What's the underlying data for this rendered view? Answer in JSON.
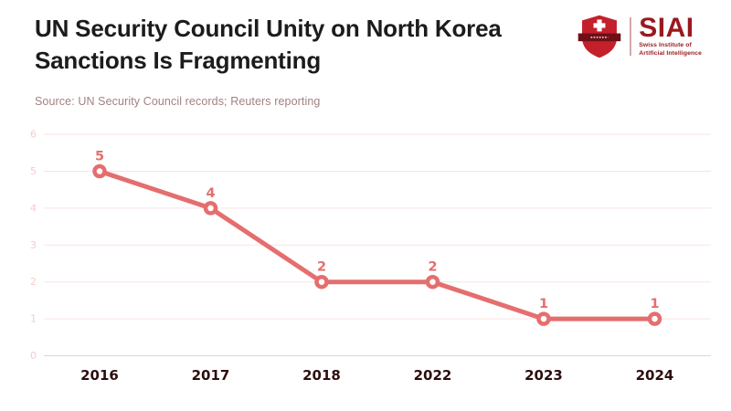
{
  "header": {
    "title_line1": "UN Security Council Unity on North Korea",
    "title_line2": "Sanctions Is Fragmenting",
    "source": "Source: UN Security Council records; Reuters reporting"
  },
  "logo": {
    "acronym": "SIAI",
    "subtitle_line1": "Swiss Institute of",
    "subtitle_line2": "Artificial Intelligence",
    "shield_icon": "swiss-shield-cross-icon",
    "brand_red": "#9a191d",
    "shield_red": "#c4202c",
    "banner_dark": "#6f0f17"
  },
  "chart_data": {
    "type": "line",
    "title": "UN Security Council Unity on North Korea Sanctions Is Fragmenting",
    "categories": [
      "2016",
      "2017",
      "2018",
      "2022",
      "2023",
      "2024"
    ],
    "values": [
      5,
      4,
      2,
      2,
      1,
      1
    ],
    "xlabel": "",
    "ylabel": "",
    "ylim": [
      0,
      6
    ],
    "yticks": [
      0,
      1,
      2,
      3,
      4,
      5,
      6
    ],
    "grid": true,
    "legend": false,
    "colors": {
      "line": "#e56e6e",
      "point_fill": "#ffffff",
      "data_label": "#e56e6e",
      "gridline": "#f9e3e3",
      "baseline": "#d8d8d8",
      "ytick_label": "#f5cccc",
      "xtick_label": "#2d0e0e"
    }
  }
}
